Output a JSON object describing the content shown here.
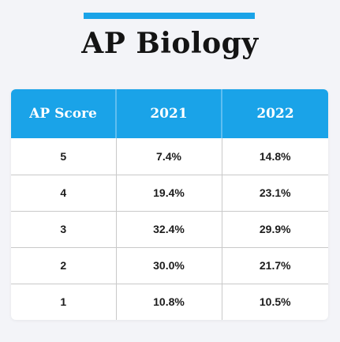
{
  "colors": {
    "accent": "#1aa3e8",
    "background": "#f3f4f8",
    "title_text": "#141414",
    "header_text": "#ffffff",
    "cell_text": "#1c1c1c",
    "grid": "#c9c9c9"
  },
  "title": "AP Biology",
  "chart_data": {
    "type": "table",
    "title": "AP Biology",
    "columns": [
      "AP Score",
      "2021",
      "2022"
    ],
    "rows": [
      [
        "5",
        "7.4%",
        "14.8%"
      ],
      [
        "4",
        "19.4%",
        "23.1%"
      ],
      [
        "3",
        "32.4%",
        "29.9%"
      ],
      [
        "2",
        "30.0%",
        "21.7%"
      ],
      [
        "1",
        "10.8%",
        "10.5%"
      ]
    ]
  }
}
